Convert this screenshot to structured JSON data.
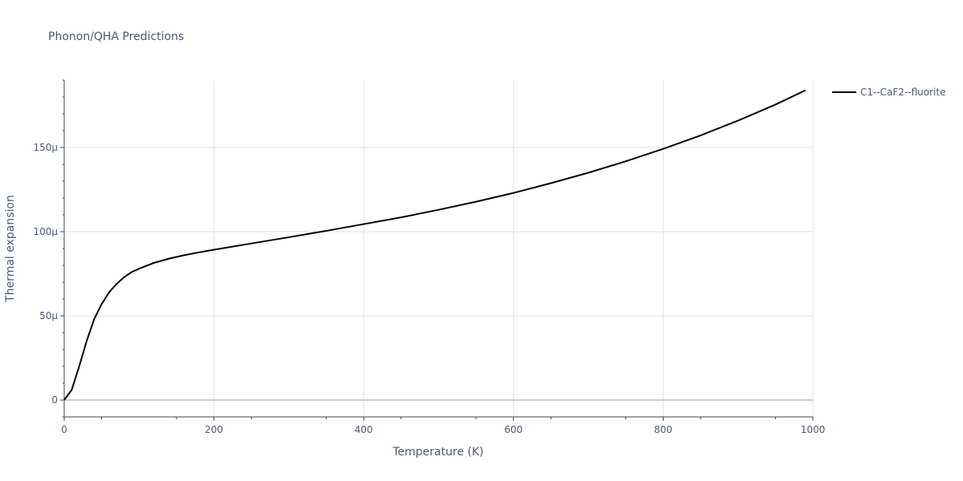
{
  "chart_data": {
    "type": "line",
    "title": "Phonon/QHA Predictions",
    "xlabel": "Temperature (K)",
    "ylabel": "Thermal expansion",
    "xlim": [
      0,
      1000
    ],
    "ylim": [
      -1e-05,
      0.00019
    ],
    "x_ticks": [
      0,
      200,
      400,
      600,
      800,
      1000
    ],
    "x_tick_labels": [
      "0",
      "200",
      "400",
      "600",
      "800",
      "1000"
    ],
    "y_ticks": [
      0,
      5e-05,
      0.0001,
      0.00015
    ],
    "y_tick_labels": [
      "0",
      "50μ",
      "100μ",
      "150μ"
    ],
    "grid": true,
    "legend_position": "top-right",
    "series": [
      {
        "name": "C1--CaF2--fluorite",
        "color": "#000000",
        "x": [
          0,
          10,
          20,
          30,
          40,
          50,
          60,
          70,
          80,
          90,
          100,
          120,
          140,
          160,
          180,
          200,
          250,
          300,
          350,
          400,
          450,
          500,
          550,
          600,
          650,
          700,
          750,
          800,
          850,
          900,
          950,
          990
        ],
        "y": [
          0,
          6e-06,
          2e-05,
          3.5e-05,
          4.8e-05,
          5.7e-05,
          6.4e-05,
          6.9e-05,
          7.3e-05,
          7.6e-05,
          7.8e-05,
          8.15e-05,
          8.4e-05,
          8.6e-05,
          8.77e-05,
          8.93e-05,
          9.3e-05,
          9.67e-05,
          0.0001005,
          0.0001045,
          0.0001085,
          0.000113,
          0.0001178,
          0.000123,
          0.0001288,
          0.000135,
          0.0001418,
          0.0001492,
          0.0001572,
          0.000166,
          0.0001755,
          0.000184
        ]
      }
    ]
  }
}
